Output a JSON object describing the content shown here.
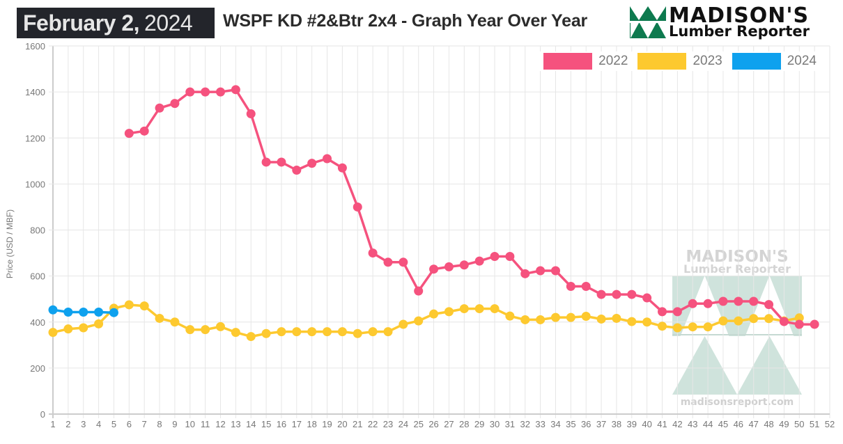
{
  "header": {
    "date_bold": "February 2,",
    "date_light": "2024",
    "title": "WSPF KD #2&Btr 2x4 - Graph Year Over Year"
  },
  "logo": {
    "line1": "MADISON'S",
    "line2": "Lumber Reporter",
    "brand_color": "#0e7a4f"
  },
  "watermark": {
    "line1": "MADISON'S",
    "line2": "Lumber Reporter",
    "url": "madisonsreport.com"
  },
  "chart_data": {
    "type": "line",
    "title": "WSPF KD #2&Btr 2x4 - Graph Year Over Year",
    "xlabel": "",
    "ylabel": "Price (USD / MBF)",
    "x": [
      1,
      2,
      3,
      4,
      5,
      6,
      7,
      8,
      9,
      10,
      11,
      12,
      13,
      14,
      15,
      16,
      17,
      18,
      19,
      20,
      21,
      22,
      23,
      24,
      25,
      26,
      27,
      28,
      29,
      30,
      31,
      32,
      33,
      34,
      35,
      36,
      37,
      38,
      39,
      40,
      41,
      42,
      43,
      44,
      45,
      46,
      47,
      48,
      49,
      50,
      51,
      52
    ],
    "x_tick_labels": [
      "1",
      "2",
      "3",
      "4",
      "5",
      "6",
      "7",
      "8",
      "9",
      "10",
      "11",
      "12",
      "13",
      "14",
      "15",
      "16",
      "17",
      "18",
      "19",
      "20",
      "21",
      "22",
      "23",
      "24",
      "25",
      "26",
      "27",
      "28",
      "29",
      "30",
      "31",
      "32",
      "33",
      "34",
      "35",
      "36",
      "37",
      "38",
      "39",
      "40",
      "41",
      "42",
      "43",
      "44",
      "45",
      "46",
      "47",
      "48",
      "49",
      "50",
      "51",
      "52"
    ],
    "ylim": [
      0,
      1600
    ],
    "y_ticks": [
      0,
      200,
      400,
      600,
      800,
      1000,
      1200,
      1400,
      1600
    ],
    "grid": true,
    "legend_position": "top-right",
    "series": [
      {
        "name": "2022",
        "color": "#f5527e",
        "values": [
          null,
          null,
          null,
          null,
          null,
          1220,
          1230,
          1330,
          1350,
          1400,
          1400,
          1400,
          1410,
          1305,
          1095,
          1095,
          1060,
          1090,
          1110,
          1070,
          900,
          700,
          660,
          660,
          535,
          630,
          640,
          648,
          665,
          685,
          685,
          610,
          623,
          623,
          555,
          555,
          520,
          520,
          520,
          505,
          445,
          445,
          480,
          480,
          490,
          490,
          490,
          476,
          402,
          390,
          390,
          null
        ]
      },
      {
        "name": "2023",
        "color": "#fdc92f",
        "values": [
          355,
          370,
          375,
          392,
          460,
          475,
          470,
          416,
          400,
          367,
          367,
          380,
          355,
          337,
          350,
          358,
          358,
          358,
          358,
          358,
          350,
          358,
          358,
          390,
          405,
          435,
          445,
          458,
          458,
          458,
          426,
          410,
          410,
          420,
          420,
          425,
          413,
          416,
          402,
          400,
          382,
          375,
          379,
          379,
          405,
          405,
          415,
          415,
          405,
          418,
          null,
          null
        ]
      },
      {
        "name": "2024",
        "color": "#0ea1ee",
        "values": [
          453,
          443,
          443,
          443,
          441,
          null,
          null,
          null,
          null,
          null,
          null,
          null,
          null,
          null,
          null,
          null,
          null,
          null,
          null,
          null,
          null,
          null,
          null,
          null,
          null,
          null,
          null,
          null,
          null,
          null,
          null,
          null,
          null,
          null,
          null,
          null,
          null,
          null,
          null,
          null,
          null,
          null,
          null,
          null,
          null,
          null,
          null,
          null,
          null,
          null,
          null,
          null
        ]
      }
    ]
  }
}
